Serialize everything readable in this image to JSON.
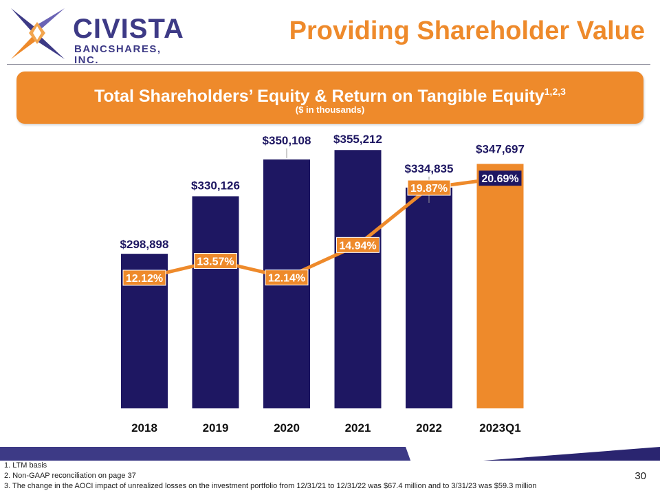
{
  "logo": {
    "name": "CIVISTA",
    "subtitle": "BANCSHARES, INC."
  },
  "page_title": "Providing Shareholder Value",
  "banner": {
    "title": "Total Shareholders’ Equity & Return on Tangible Equity",
    "superscript": "1,2,3",
    "subtitle": "($ in thousands)"
  },
  "chart_data": {
    "type": "bar",
    "title": "Total Shareholders’ Equity & Return on Tangible Equity",
    "subtitle": "($ in thousands)",
    "categories": [
      "2018",
      "2019",
      "2020",
      "2021",
      "2022",
      "2023Q1"
    ],
    "series": [
      {
        "name": "Total Shareholders’ Equity",
        "type": "bar",
        "values": [
          298898,
          330126,
          350108,
          355212,
          334835,
          347697
        ],
        "labels": [
          "$298,898",
          "$330,126",
          "$350,108",
          "$355,212",
          "$334,835",
          "$347,697"
        ],
        "highlight_index": 5
      },
      {
        "name": "Return on Tangible Equity",
        "type": "line",
        "values": [
          12.12,
          13.57,
          12.14,
          14.94,
          19.87,
          20.69
        ],
        "labels": [
          "12.12%",
          "13.57%",
          "12.14%",
          "14.94%",
          "19.87%",
          "20.69%"
        ]
      }
    ],
    "xlabel": "",
    "ylabel": "",
    "grid": false,
    "colors": {
      "bar": "#1e1762",
      "bar_highlight": "#ee8a2b",
      "line": "#ee8a2b",
      "label": "#1e1762",
      "line_label_text": "#ffffff"
    }
  },
  "footnotes": [
    "1. LTM basis",
    "2. Non-GAAP reconciliation on page 37",
    "3. The change in the AOCI impact of unrealized losses on the investment portfolio from 12/31/21 to 12/31/22 was $67.4 million  and  to 3/31/23 was $59.3 million"
  ],
  "page_number": "30",
  "colors": {
    "accent": "#ee8a2b",
    "brand": "#3d3a86",
    "navy": "#1e1762"
  }
}
